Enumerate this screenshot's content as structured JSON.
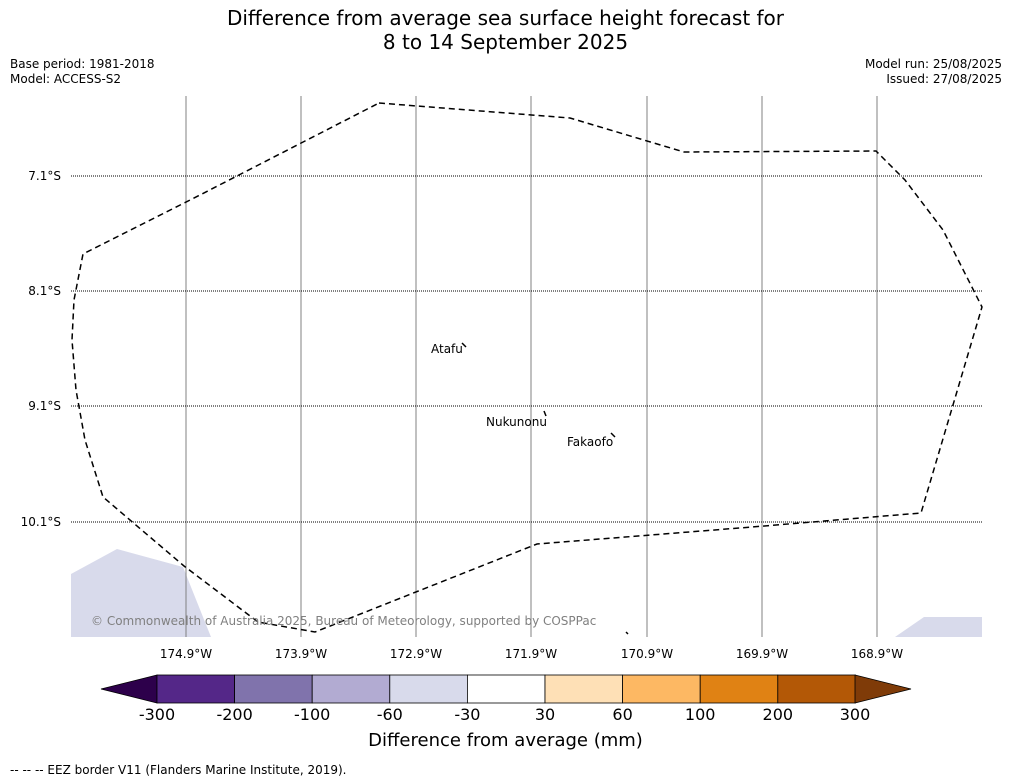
{
  "title_line1": "Difference from average sea surface height forecast for",
  "title_line2": "8 to 14 September 2025",
  "base_period": "Base period: 1981-2018",
  "model": "Model: ACCESS-S2",
  "model_run": "Model run: 25/08/2025",
  "issued": "Issued: 27/08/2025",
  "lat_labels": [
    "7.1°S",
    "8.1°S",
    "9.1°S",
    "10.1°S"
  ],
  "lon_labels": [
    "174.9°W",
    "173.9°W",
    "172.9°W",
    "171.9°W",
    "170.9°W",
    "169.9°W",
    "168.9°W"
  ],
  "places": {
    "atafu": "Atafu",
    "nukunonu": "Nukunonu",
    "fakaofo": "Fakaofo"
  },
  "copyright": "© Commonwealth of Australia 2025, Bureau of Meteorology, supported by COSPPac",
  "colorbar": {
    "title": "Difference from average (mm)",
    "tick_labels": [
      "-300",
      "-200",
      "-100",
      "-60",
      "-30",
      "30",
      "60",
      "100",
      "200",
      "300"
    ],
    "colors": {
      "below": "#2d004b",
      "bins": [
        "#542788",
        "#8073ac",
        "#b2abd2",
        "#d8daeb",
        "#ffffff",
        "#fee0b6",
        "#fdb863",
        "#e08214",
        "#b35806"
      ],
      "above": "#7f3b08"
    }
  },
  "map_colors": {
    "anomaly_fill": "#d8daeb",
    "eez_line": "#000000"
  },
  "footnote": "--  --  -- EEZ border V11 (Flanders Marine Institute, 2019)."
}
